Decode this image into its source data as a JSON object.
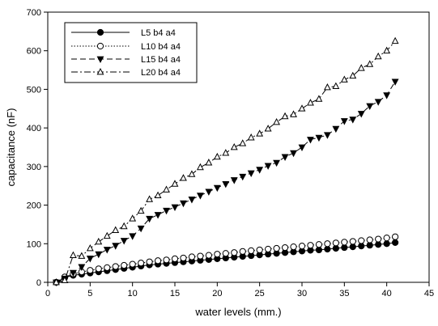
{
  "chart_data": {
    "type": "scatter",
    "title": "",
    "xlabel": "water levels (mm.)",
    "ylabel": "capacitance (nF)",
    "xlim": [
      0,
      45
    ],
    "ylim": [
      0,
      700
    ],
    "xticks": [
      0,
      5,
      10,
      15,
      20,
      25,
      30,
      35,
      40,
      45
    ],
    "yticks": [
      0,
      100,
      200,
      300,
      400,
      500,
      600,
      700
    ],
    "grid": false,
    "legend_position": "top-left",
    "x": [
      1,
      2,
      3,
      4,
      5,
      6,
      7,
      8,
      9,
      10,
      11,
      12,
      13,
      14,
      15,
      16,
      17,
      18,
      19,
      20,
      21,
      22,
      23,
      24,
      25,
      26,
      27,
      28,
      29,
      30,
      31,
      32,
      33,
      34,
      35,
      36,
      37,
      38,
      39,
      40,
      41
    ],
    "series": [
      {
        "name": "L5 b4 a4",
        "marker": "filled-circle",
        "line_style": "solid",
        "color": "#000000",
        "values": [
          0,
          12,
          18,
          21,
          24,
          27,
          30,
          33,
          36,
          39,
          42,
          45,
          47,
          49,
          51,
          53,
          55,
          57,
          59,
          61,
          63,
          65,
          67,
          69,
          71,
          73,
          75,
          77,
          79,
          81,
          83,
          84,
          86,
          88,
          90,
          92,
          94,
          96,
          98,
          100,
          103
        ]
      },
      {
        "name": "L10 b4 a4",
        "marker": "open-circle",
        "line_style": "dotted",
        "color": "#000000",
        "values": [
          0,
          14,
          22,
          27,
          31,
          35,
          38,
          41,
          44,
          47,
          50,
          53,
          56,
          58,
          61,
          63,
          66,
          68,
          70,
          73,
          75,
          77,
          80,
          82,
          84,
          86,
          88,
          90,
          92,
          94,
          96,
          98,
          100,
          102,
          104,
          106,
          108,
          110,
          112,
          115,
          118
        ]
      },
      {
        "name": "L15 b4 a4",
        "marker": "filled-triangle-down",
        "line_style": "dashed",
        "color": "#000000",
        "values": [
          0,
          10,
          25,
          40,
          62,
          73,
          85,
          95,
          108,
          120,
          140,
          165,
          175,
          186,
          195,
          205,
          215,
          225,
          235,
          245,
          255,
          265,
          274,
          283,
          292,
          302,
          310,
          325,
          335,
          350,
          370,
          375,
          382,
          398,
          418,
          422,
          437,
          457,
          468,
          485,
          520
        ]
      },
      {
        "name": "L20 b4 a4",
        "marker": "open-triangle-up",
        "line_style": "dash-dot",
        "color": "#000000",
        "values": [
          0,
          5,
          70,
          68,
          88,
          105,
          120,
          135,
          145,
          165,
          185,
          215,
          225,
          240,
          255,
          270,
          280,
          298,
          310,
          325,
          335,
          350,
          360,
          375,
          385,
          398,
          415,
          430,
          435,
          450,
          465,
          475,
          505,
          508,
          525,
          535,
          555,
          565,
          585,
          600,
          625
        ]
      }
    ]
  }
}
